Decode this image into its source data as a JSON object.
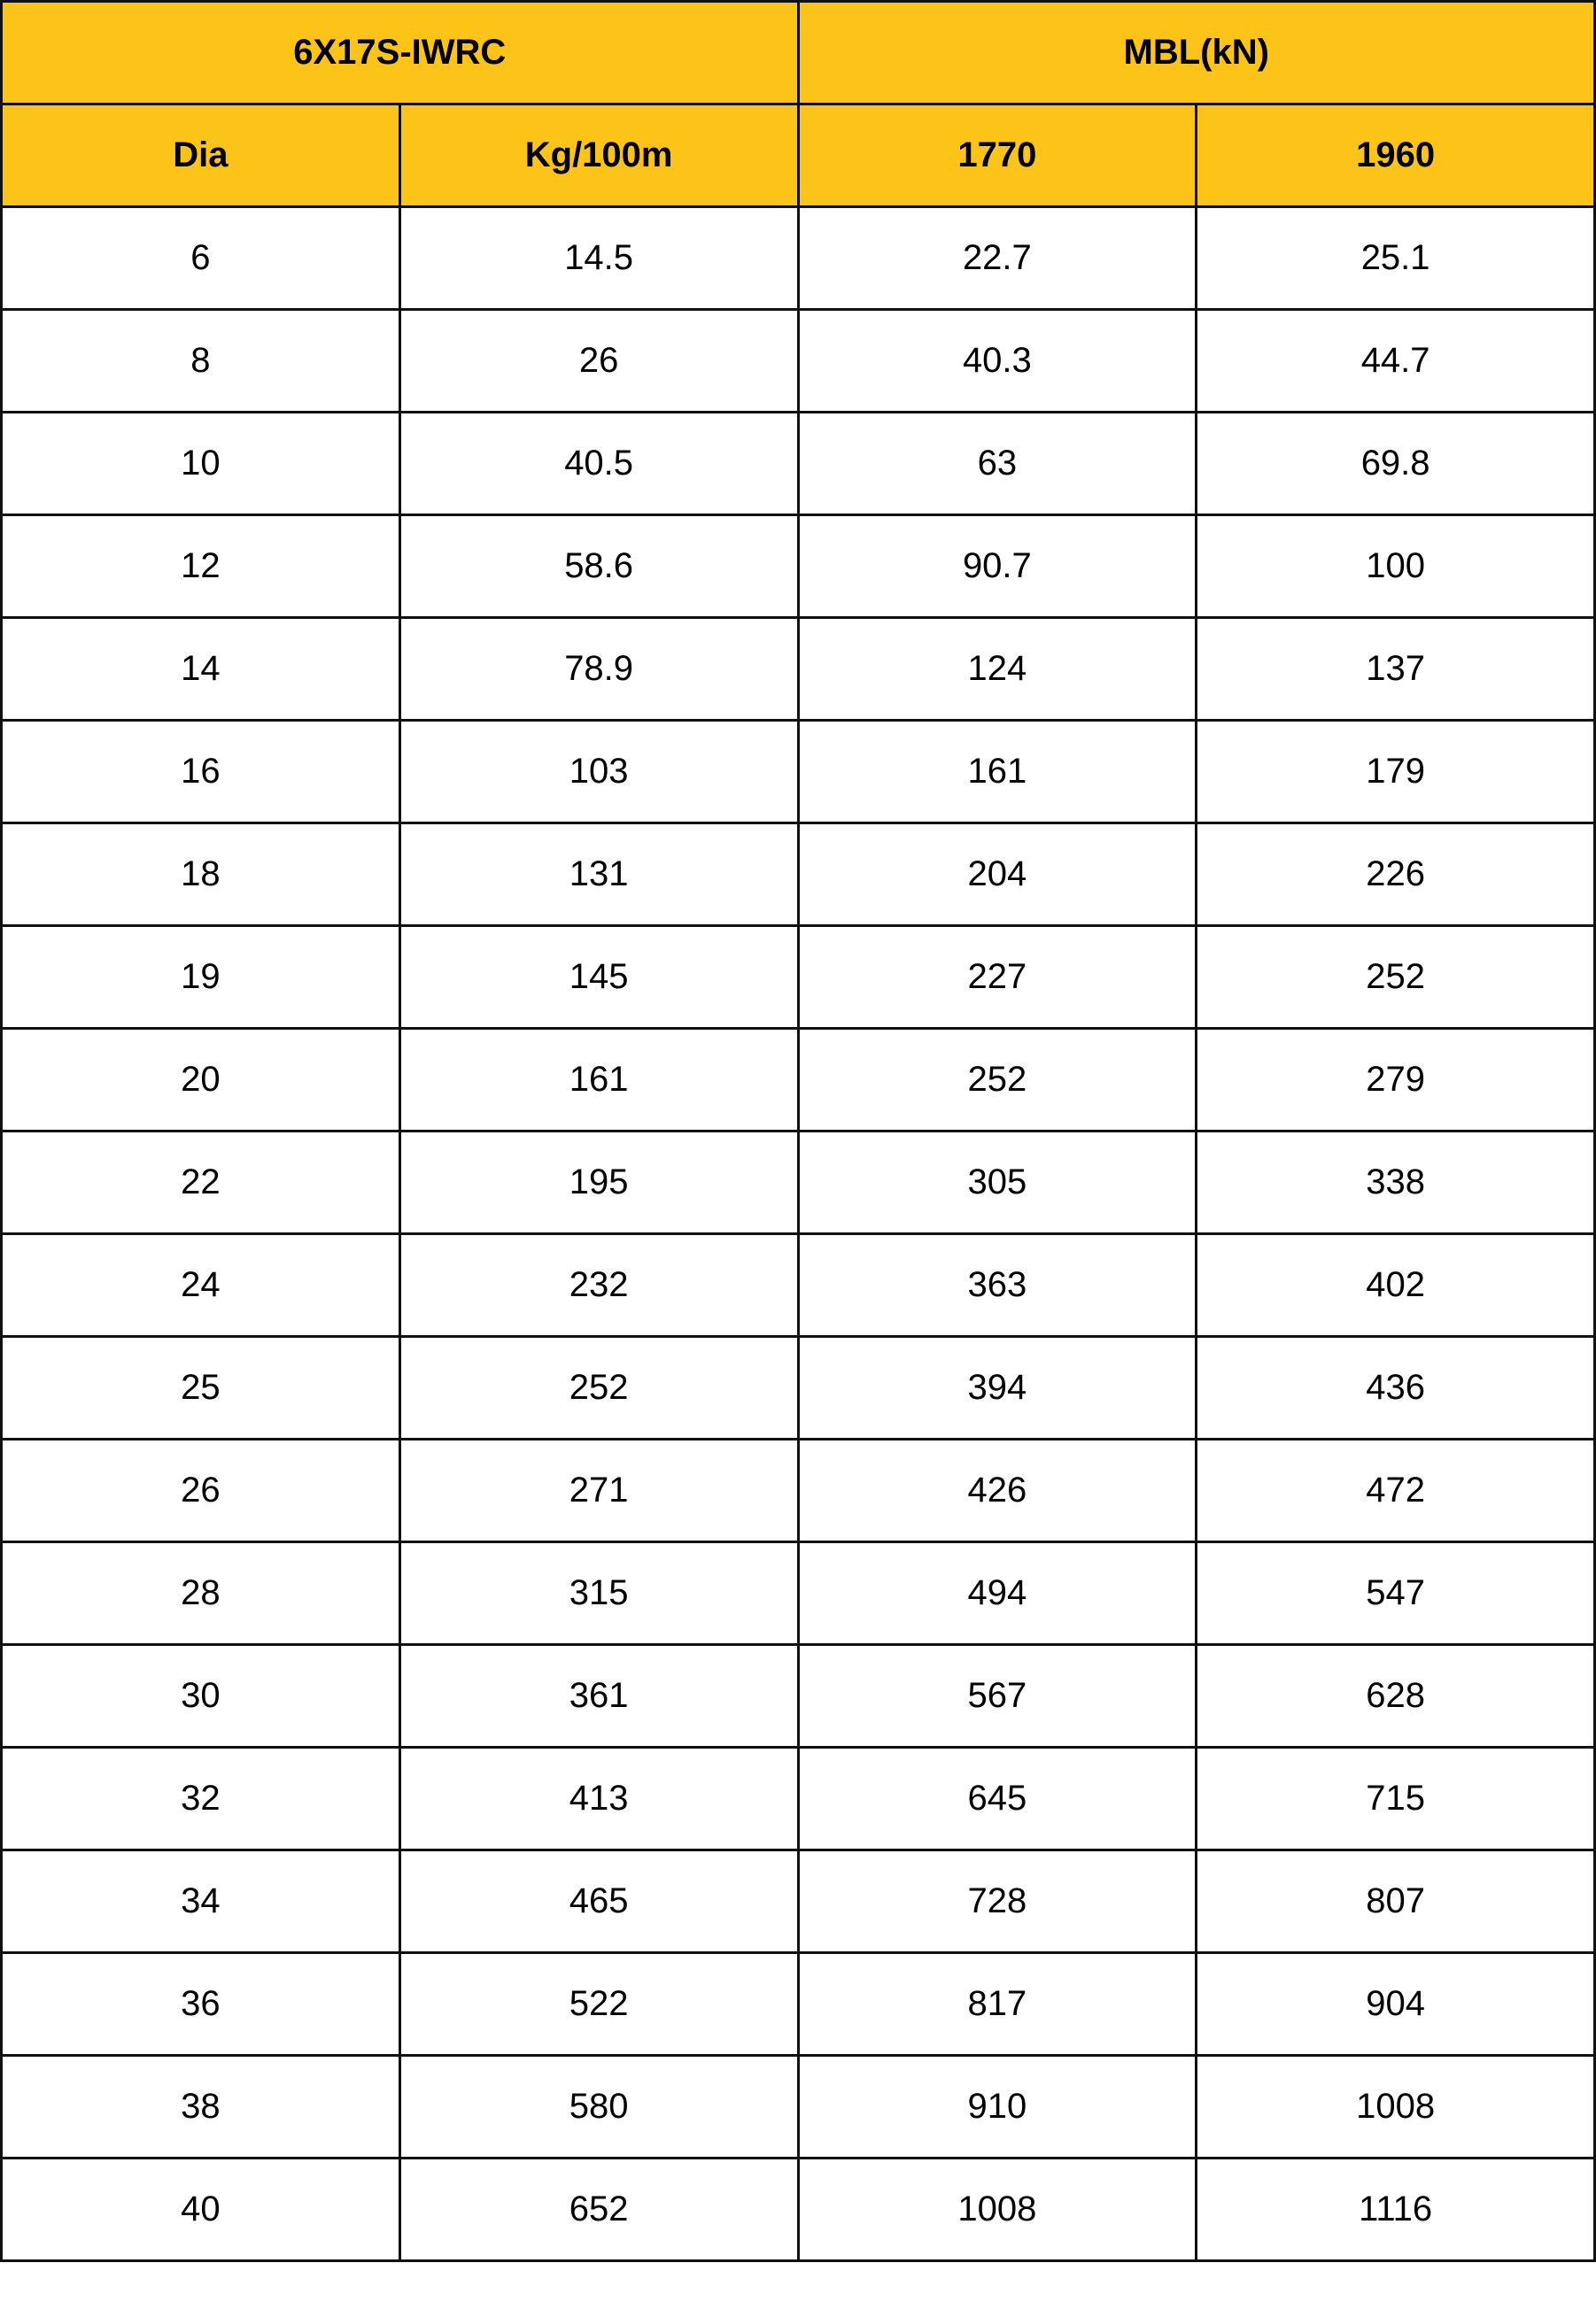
{
  "header": {
    "group_left": "6X17S-IWRC",
    "group_right": "MBL(kN)",
    "columns": [
      "Dia",
      "Kg/100m",
      "1770",
      "1960"
    ],
    "color": "#FCC419"
  },
  "rows": [
    [
      "6",
      "14.5",
      "22.7",
      "25.1"
    ],
    [
      "8",
      "26",
      "40.3",
      "44.7"
    ],
    [
      "10",
      "40.5",
      "63",
      "69.8"
    ],
    [
      "12",
      "58.6",
      "90.7",
      "100"
    ],
    [
      "14",
      "78.9",
      "124",
      "137"
    ],
    [
      "16",
      "103",
      "161",
      "179"
    ],
    [
      "18",
      "131",
      "204",
      "226"
    ],
    [
      "19",
      "145",
      "227",
      "252"
    ],
    [
      "20",
      "161",
      "252",
      "279"
    ],
    [
      "22",
      "195",
      "305",
      "338"
    ],
    [
      "24",
      "232",
      "363",
      "402"
    ],
    [
      "25",
      "252",
      "394",
      "436"
    ],
    [
      "26",
      "271",
      "426",
      "472"
    ],
    [
      "28",
      "315",
      "494",
      "547"
    ],
    [
      "30",
      "361",
      "567",
      "628"
    ],
    [
      "32",
      "413",
      "645",
      "715"
    ],
    [
      "34",
      "465",
      "728",
      "807"
    ],
    [
      "36",
      "522",
      "817",
      "904"
    ],
    [
      "38",
      "580",
      "910",
      "1008"
    ],
    [
      "40",
      "652",
      "1008",
      "1116"
    ]
  ]
}
